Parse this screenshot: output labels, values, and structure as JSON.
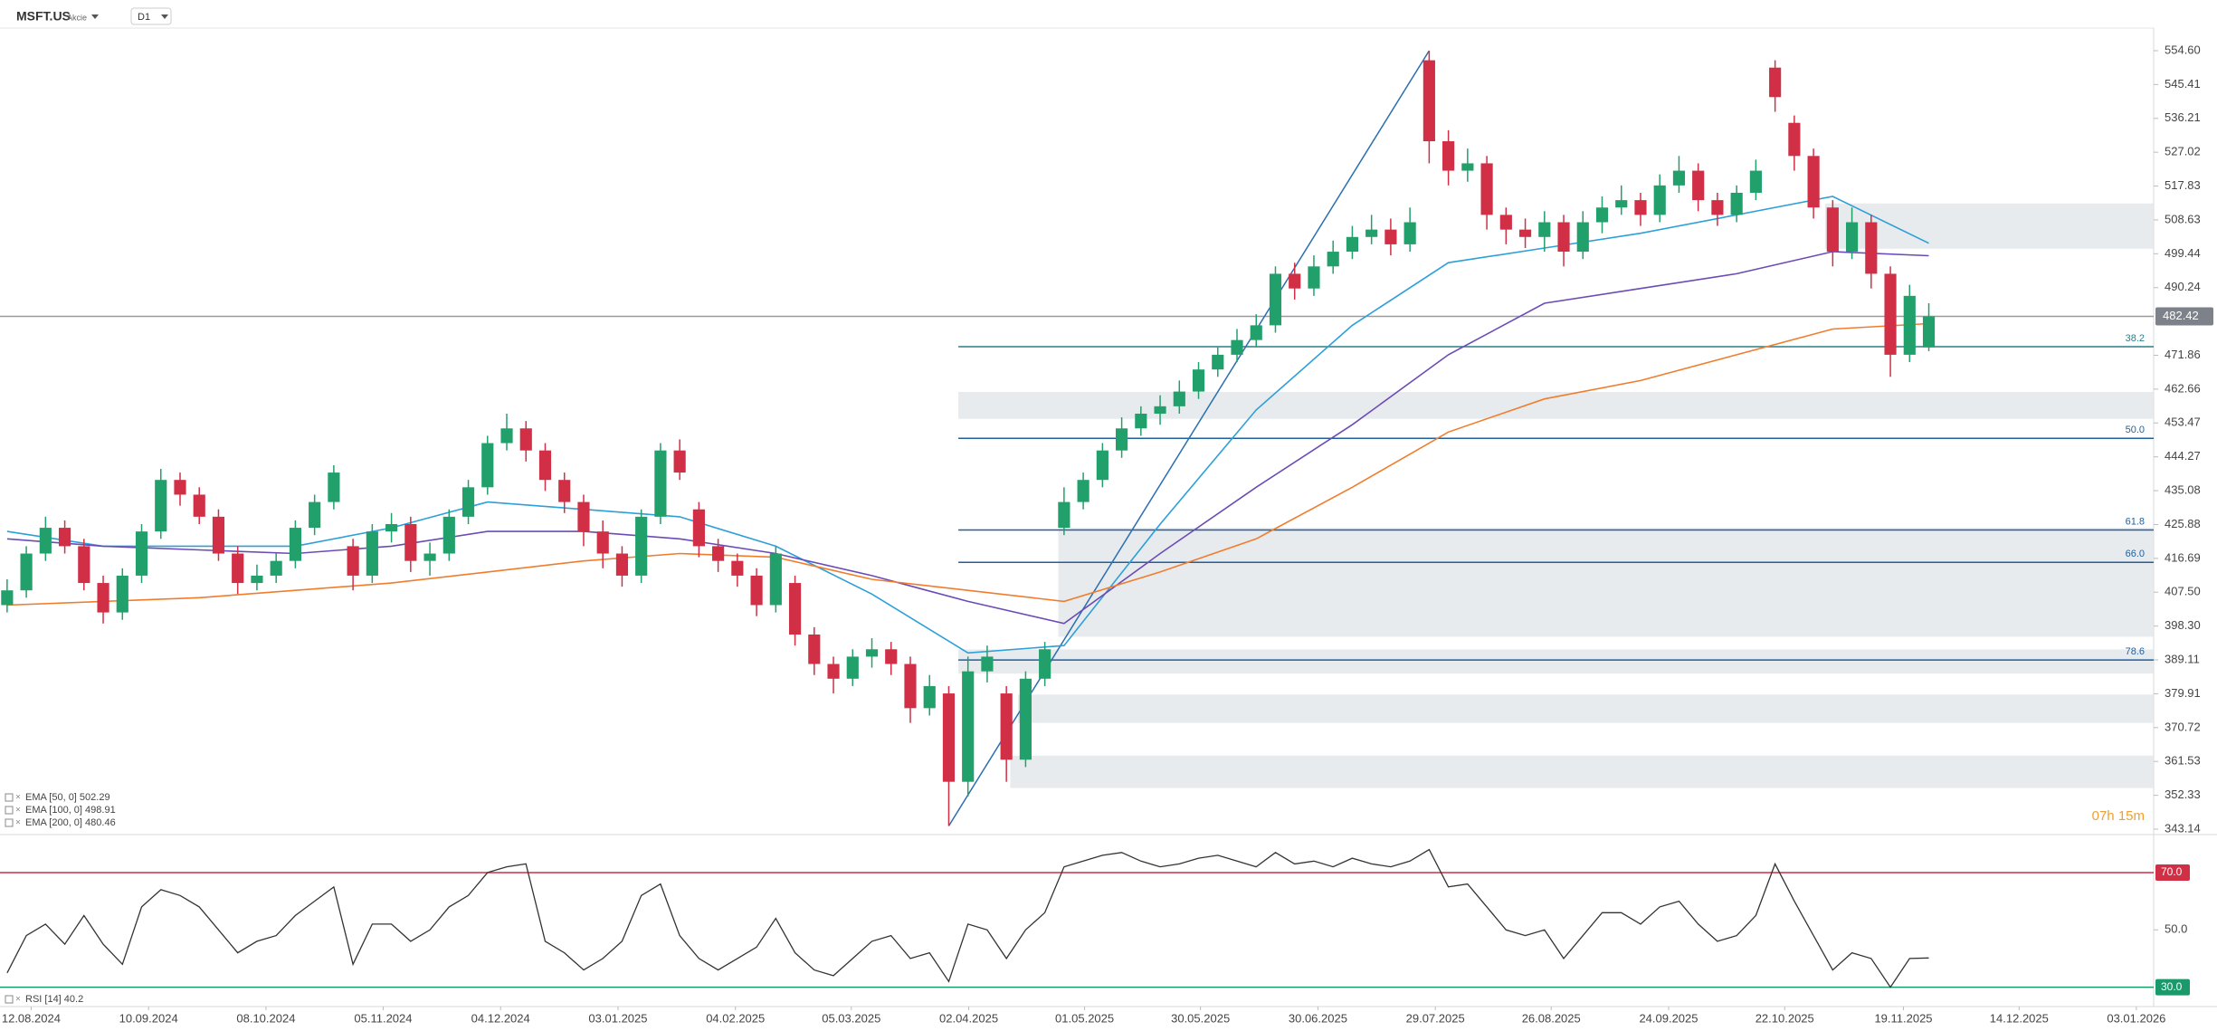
{
  "header": {
    "symbol": "MSFT.US",
    "asset_class": "Akcie",
    "timeframe": "D1"
  },
  "chart_data": [
    {
      "type": "candlestick",
      "up_color": "#22a06b",
      "down_color": "#d12f45",
      "open": [
        404,
        408,
        418,
        425,
        420,
        410,
        402,
        412,
        424,
        438,
        434,
        428,
        418,
        410,
        412,
        416,
        425,
        432,
        420,
        412,
        424,
        426,
        416,
        418,
        428,
        436,
        448,
        452,
        446,
        438,
        432,
        424,
        418,
        412,
        428,
        446,
        430,
        420,
        416,
        412,
        404,
        410,
        396,
        388,
        384,
        390,
        392,
        388,
        376,
        380,
        356,
        386,
        380,
        362,
        384,
        425,
        432,
        438,
        446,
        452,
        456,
        458,
        462,
        468,
        472,
        476,
        480,
        494,
        490,
        496,
        500,
        504,
        506,
        502,
        552,
        530,
        522,
        524,
        510,
        506,
        504,
        508,
        500,
        508,
        512,
        514,
        510,
        518,
        522,
        514,
        510,
        516,
        550,
        535,
        526,
        512,
        500,
        508,
        494,
        472,
        474
      ],
      "high": [
        411,
        420,
        428,
        427,
        422,
        412,
        414,
        426,
        441,
        440,
        436,
        430,
        420,
        415,
        418,
        427,
        434,
        442,
        422,
        426,
        429,
        428,
        421,
        430,
        438,
        450,
        456,
        454,
        448,
        440,
        434,
        427,
        420,
        430,
        448,
        449,
        432,
        422,
        418,
        414,
        420,
        412,
        398,
        390,
        392,
        395,
        394,
        390,
        385,
        382,
        390,
        393,
        382,
        386,
        394,
        436,
        440,
        448,
        455,
        458,
        461,
        465,
        470,
        474,
        479,
        483,
        496,
        497,
        499,
        503,
        507,
        510,
        509,
        512,
        554.6,
        533,
        528,
        526,
        512,
        509,
        511,
        510,
        511,
        515,
        518,
        516,
        521,
        526,
        524,
        516,
        518,
        525,
        552,
        537,
        528,
        514,
        512,
        510,
        496,
        491,
        486
      ],
      "low": [
        402,
        406,
        416,
        418,
        408,
        399,
        400,
        410,
        422,
        431,
        426,
        416,
        407,
        408,
        410,
        414,
        423,
        430,
        408,
        410,
        421,
        413,
        412,
        416,
        426,
        434,
        446,
        443,
        435,
        429,
        420,
        414,
        409,
        410,
        426,
        438,
        417,
        413,
        409,
        401,
        402,
        393,
        385,
        380,
        382,
        387,
        385,
        372,
        374,
        344,
        352,
        383,
        356,
        360,
        382,
        423,
        430,
        436,
        444,
        450,
        453,
        456,
        460,
        466,
        470,
        474,
        478,
        487,
        488,
        494,
        498,
        502,
        499,
        500,
        524,
        518,
        519,
        506,
        502,
        501,
        500,
        496,
        498,
        505,
        510,
        507,
        508,
        516,
        511,
        507,
        508,
        514,
        538,
        522,
        509,
        496,
        498,
        490,
        466,
        470,
        473
      ],
      "close": [
        408,
        418,
        425,
        420,
        410,
        402,
        412,
        424,
        438,
        434,
        428,
        418,
        410,
        412,
        416,
        425,
        432,
        440,
        412,
        424,
        426,
        416,
        418,
        428,
        436,
        448,
        452,
        446,
        438,
        432,
        424,
        418,
        412,
        428,
        446,
        440,
        420,
        416,
        412,
        404,
        418,
        396,
        388,
        384,
        390,
        392,
        388,
        376,
        382,
        356,
        386,
        390,
        362,
        384,
        392,
        432,
        438,
        446,
        452,
        456,
        458,
        462,
        468,
        472,
        476,
        480,
        494,
        490,
        496,
        500,
        504,
        506,
        502,
        508,
        530,
        522,
        524,
        510,
        506,
        504,
        508,
        500,
        508,
        512,
        514,
        510,
        518,
        522,
        514,
        510,
        516,
        522,
        542,
        526,
        512,
        500,
        508,
        494,
        472,
        488,
        482.42
      ],
      "xlim": [
        -0.37,
        111.7
      ],
      "xticks": [
        {
          "value": 1.25,
          "label": "12.08.2024"
        },
        {
          "value": 7.36,
          "label": "10.09.2024"
        },
        {
          "value": 13.47,
          "label": "08.10.2024"
        },
        {
          "value": 19.57,
          "label": "05.11.2024"
        },
        {
          "value": 25.68,
          "label": "04.12.2024"
        },
        {
          "value": 31.79,
          "label": "03.01.2025"
        },
        {
          "value": 37.9,
          "label": "04.02.2025"
        },
        {
          "value": 43.93,
          "label": "05.03.2025"
        },
        {
          "value": 50.04,
          "label": "02.04.2025"
        },
        {
          "value": 56.07,
          "label": "01.05.2025"
        },
        {
          "value": 62.1,
          "label": "30.05.2025"
        },
        {
          "value": 68.21,
          "label": "30.06.2025"
        },
        {
          "value": 74.32,
          "label": "29.07.2025"
        },
        {
          "value": 80.35,
          "label": "26.08.2025"
        },
        {
          "value": 86.46,
          "label": "24.09.2025"
        },
        {
          "value": 92.5,
          "label": "22.10.2025"
        },
        {
          "value": 98.68,
          "label": "19.11.2025"
        },
        {
          "value": 104.7,
          "label": "14.12.2025"
        },
        {
          "value": 110.8,
          "label": "03.01.2026"
        }
      ],
      "ylim": [
        341.66,
        560.5
      ],
      "yticks": [
        {
          "value": 554.6,
          "label": "554.60"
        },
        545.41,
        536.21,
        527.02,
        517.83,
        508.63,
        499.44,
        490.24,
        471.86,
        462.66,
        453.47,
        444.27,
        435.08,
        425.88,
        416.69,
        {
          "value": 407.5,
          "label": "407.50"
        },
        {
          "value": 398.3,
          "label": "398.30"
        },
        389.11,
        379.91,
        370.72,
        361.53,
        352.33,
        343.14
      ],
      "indicators": [
        {
          "name": "EMA [50, 0] 502.29",
          "color": "#2d9fd9",
          "x": [
            0,
            5,
            10,
            15,
            20,
            25,
            30,
            35,
            40,
            45,
            50,
            55,
            60,
            65,
            70,
            75,
            80,
            85,
            90,
            95,
            100
          ],
          "values": [
            424,
            420,
            420,
            420,
            425,
            432,
            430,
            428,
            420,
            407,
            391,
            393,
            426,
            457,
            480,
            497,
            501,
            505,
            510,
            515,
            502.29
          ]
        },
        {
          "name": "EMA [100, 0] 498.91",
          "color": "#6b4bb5",
          "x": [
            0,
            5,
            10,
            15,
            20,
            25,
            30,
            35,
            40,
            45,
            50,
            55,
            60,
            65,
            70,
            75,
            80,
            85,
            90,
            95,
            100
          ],
          "values": [
            422,
            420,
            419,
            418,
            420,
            424,
            424,
            422,
            418,
            412,
            405,
            399,
            418,
            436,
            453,
            472,
            486,
            490,
            494,
            500,
            498.91
          ]
        },
        {
          "name": "EMA [200, 0] 480.46",
          "color": "#f07d2e",
          "x": [
            0,
            5,
            10,
            15,
            20,
            25,
            30,
            35,
            40,
            45,
            50,
            55,
            60,
            65,
            70,
            75,
            80,
            85,
            90,
            95,
            100
          ],
          "values": [
            404,
            405,
            406,
            408,
            410,
            413,
            416,
            418,
            417,
            411,
            408,
            405,
            413,
            422,
            436,
            451,
            460,
            465,
            472,
            479,
            480.46
          ]
        }
      ],
      "fib_levels": [
        {
          "label": "38.2",
          "value": 474.2,
          "color": "#2a7f86"
        },
        {
          "label": "50.0",
          "value": 449.3,
          "color": "#1f5f9e"
        },
        {
          "label": "61.8",
          "value": 424.4,
          "color": "#1f5f9e"
        },
        {
          "label": "66.0",
          "value": 415.6,
          "color": "#1f5f9e"
        },
        {
          "label": "78.6",
          "value": 389.1,
          "color": "#1f5f9e"
        }
      ],
      "zones": [
        {
          "x": 94.6,
          "low": 500.8,
          "high": 513.1
        },
        {
          "x": 49.5,
          "low": 454.6,
          "high": 461.9
        },
        {
          "x": 54.7,
          "low": 395.4,
          "high": 425.0
        },
        {
          "x": 49.5,
          "low": 385.4,
          "high": 391.97
        },
        {
          "x": 52.6,
          "low": 372.0,
          "high": 379.7
        },
        {
          "x": 52.2,
          "low": 354.3,
          "high": 363.1
        }
      ],
      "last_price": 482.42,
      "timer": "07h 15m"
    },
    {
      "type": "line",
      "name": "RSI [14] 40.2",
      "color": "#333333",
      "values": [
        35,
        48,
        52,
        45,
        55,
        45,
        38,
        58,
        64,
        62,
        58,
        50,
        42,
        46,
        48,
        55,
        60,
        65,
        38,
        52,
        52,
        46,
        50,
        58,
        62,
        70,
        72,
        73,
        46,
        42,
        36,
        40,
        46,
        62,
        66,
        48,
        40,
        36,
        40,
        44,
        54,
        42,
        36,
        34,
        40,
        46,
        48,
        40,
        42,
        32,
        52,
        50,
        40,
        50,
        56,
        72,
        74,
        76,
        77,
        74,
        72,
        73,
        75,
        76,
        74,
        72,
        77,
        73,
        74,
        72,
        75,
        73,
        72,
        74,
        78,
        65,
        66,
        58,
        50,
        48,
        50,
        40,
        48,
        56,
        56,
        52,
        58,
        60,
        52,
        46,
        48,
        55,
        73,
        60,
        48,
        36,
        42,
        40,
        30,
        40,
        40.2
      ],
      "xlim": [
        -0.37,
        111.7
      ],
      "ylim": [
        23.87,
        82.3
      ],
      "yticks": [
        {
          "value": 70,
          "label": "70.0"
        },
        {
          "value": 50,
          "label": "50.0"
        },
        {
          "value": 30,
          "label": "30.0"
        }
      ],
      "level_colors": [
        "#d12f45",
        null,
        "#1a9a6b"
      ]
    }
  ]
}
